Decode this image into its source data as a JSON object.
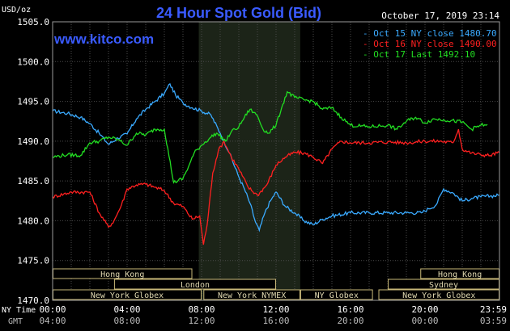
{
  "chart_data": {
    "type": "line",
    "title": "24 Hour Spot Gold (Bid)",
    "source": "www.kitco.com",
    "timestamp": "October 17, 2019 23:14",
    "ylabel": "USD/oz",
    "ylim": [
      1470,
      1505
    ],
    "y_ticks": [
      "1505.0",
      "1500.0",
      "1495.0",
      "1490.0",
      "1485.0",
      "1480.0",
      "1475.0",
      "1470.0"
    ],
    "xlim": [
      0,
      24
    ],
    "x_label_ny": "NY Time",
    "x_label_gmt": "GMT",
    "x_ticks_ny": [
      "00:00",
      "04:00",
      "08:00",
      "12:00",
      "16:00",
      "20:00",
      "23:59"
    ],
    "x_ticks_gmt": [
      "04:00",
      "08:00",
      "12:00",
      "16:00",
      "20:00",
      "00:00",
      "03:59"
    ],
    "highlight": {
      "from": 7.85,
      "to": 13.3,
      "label": "New York NYMEX"
    },
    "legend": {
      "position": "top-right"
    },
    "series": [
      {
        "name": "Oct 15 NY close 1480.70",
        "color": "#3aaaff",
        "points": [
          [
            0,
            1493.8
          ],
          [
            0.8,
            1493.5
          ],
          [
            1.5,
            1493.0
          ],
          [
            2.0,
            1492.2
          ],
          [
            2.5,
            1491.0
          ],
          [
            3.0,
            1489.6
          ],
          [
            3.5,
            1490.4
          ],
          [
            4.0,
            1490.9
          ],
          [
            4.5,
            1492.8
          ],
          [
            5.0,
            1494.0
          ],
          [
            5.5,
            1495.0
          ],
          [
            6.0,
            1496.0
          ],
          [
            6.3,
            1497.2
          ],
          [
            6.6,
            1495.8
          ],
          [
            7.0,
            1494.8
          ],
          [
            7.5,
            1494.2
          ],
          [
            8.0,
            1493.8
          ],
          [
            8.5,
            1493.3
          ],
          [
            9.0,
            1491.0
          ],
          [
            9.5,
            1488.5
          ],
          [
            10.0,
            1485.5
          ],
          [
            10.3,
            1484.0
          ],
          [
            10.6,
            1482.2
          ],
          [
            10.9,
            1479.8
          ],
          [
            11.1,
            1478.8
          ],
          [
            11.4,
            1481.0
          ],
          [
            11.7,
            1482.5
          ],
          [
            12.0,
            1483.6
          ],
          [
            12.5,
            1481.8
          ],
          [
            13.0,
            1481.0
          ],
          [
            13.5,
            1480.0
          ],
          [
            14.0,
            1479.5
          ],
          [
            14.5,
            1480.2
          ],
          [
            15.0,
            1480.6
          ],
          [
            16.0,
            1481.0
          ],
          [
            17.0,
            1481.0
          ],
          [
            18.0,
            1481.0
          ],
          [
            19.0,
            1481.0
          ],
          [
            19.8,
            1481.0
          ],
          [
            20.2,
            1481.5
          ],
          [
            20.6,
            1482.0
          ],
          [
            21.0,
            1484.0
          ],
          [
            21.5,
            1483.5
          ],
          [
            22.0,
            1482.5
          ],
          [
            22.5,
            1482.8
          ],
          [
            23.0,
            1483.0
          ],
          [
            23.5,
            1483.1
          ],
          [
            23.99,
            1483.2
          ]
        ]
      },
      {
        "name": "Oct 16 NY close 1490.00",
        "color": "#ff2020",
        "points": [
          [
            0,
            1483.0
          ],
          [
            1.0,
            1483.6
          ],
          [
            2.0,
            1483.6
          ],
          [
            2.5,
            1481.0
          ],
          [
            3.0,
            1479.2
          ],
          [
            3.3,
            1480.0
          ],
          [
            3.7,
            1482.0
          ],
          [
            4.0,
            1484.0
          ],
          [
            4.5,
            1484.5
          ],
          [
            5.0,
            1484.6
          ],
          [
            5.5,
            1484.2
          ],
          [
            6.0,
            1483.8
          ],
          [
            6.5,
            1482.2
          ],
          [
            7.0,
            1481.8
          ],
          [
            7.5,
            1480.2
          ],
          [
            7.9,
            1480.6
          ],
          [
            8.1,
            1477.0
          ],
          [
            8.3,
            1479.5
          ],
          [
            8.6,
            1486.0
          ],
          [
            8.9,
            1488.8
          ],
          [
            9.2,
            1490.0
          ],
          [
            9.6,
            1488.0
          ],
          [
            10.0,
            1486.5
          ],
          [
            10.5,
            1484.2
          ],
          [
            11.0,
            1483.2
          ],
          [
            11.5,
            1484.5
          ],
          [
            12.0,
            1487.0
          ],
          [
            12.5,
            1488.0
          ],
          [
            13.0,
            1488.6
          ],
          [
            13.5,
            1488.5
          ],
          [
            14.0,
            1488.0
          ],
          [
            14.5,
            1487.2
          ],
          [
            15.0,
            1489.0
          ],
          [
            15.5,
            1490.0
          ],
          [
            16.0,
            1489.8
          ],
          [
            17.0,
            1489.8
          ],
          [
            18.0,
            1489.9
          ],
          [
            19.0,
            1489.8
          ],
          [
            20.0,
            1490.0
          ],
          [
            20.8,
            1490.0
          ],
          [
            21.5,
            1489.8
          ],
          [
            21.8,
            1491.5
          ],
          [
            22.0,
            1489.0
          ],
          [
            22.5,
            1488.5
          ],
          [
            23.0,
            1488.3
          ],
          [
            23.5,
            1488.2
          ],
          [
            23.99,
            1488.6
          ]
        ]
      },
      {
        "name": "Oct 17 Last 1492.10",
        "color": "#22dd22",
        "points": [
          [
            0,
            1488.0
          ],
          [
            0.8,
            1488.3
          ],
          [
            1.5,
            1488.2
          ],
          [
            2.0,
            1489.8
          ],
          [
            2.5,
            1490.0
          ],
          [
            3.0,
            1490.5
          ],
          [
            3.5,
            1490.2
          ],
          [
            4.0,
            1489.5
          ],
          [
            4.5,
            1491.0
          ],
          [
            5.0,
            1490.8
          ],
          [
            5.5,
            1491.5
          ],
          [
            6.0,
            1491.5
          ],
          [
            6.5,
            1484.8
          ],
          [
            7.0,
            1485.3
          ],
          [
            7.3,
            1486.8
          ],
          [
            7.6,
            1488.5
          ],
          [
            8.0,
            1489.5
          ],
          [
            8.5,
            1490.5
          ],
          [
            8.8,
            1491.0
          ],
          [
            9.3,
            1490.0
          ],
          [
            9.6,
            1491.2
          ],
          [
            10.0,
            1491.8
          ],
          [
            10.3,
            1493.0
          ],
          [
            10.6,
            1494.0
          ],
          [
            11.0,
            1493.2
          ],
          [
            11.3,
            1491.5
          ],
          [
            11.6,
            1491.0
          ],
          [
            12.0,
            1492.0
          ],
          [
            12.3,
            1494.2
          ],
          [
            12.6,
            1496.2
          ],
          [
            13.0,
            1495.5
          ],
          [
            13.5,
            1495.2
          ],
          [
            14.0,
            1495.0
          ],
          [
            14.5,
            1494.0
          ],
          [
            15.0,
            1494.2
          ],
          [
            15.5,
            1493.0
          ],
          [
            16.0,
            1492.0
          ],
          [
            17.0,
            1491.8
          ],
          [
            18.0,
            1492.0
          ],
          [
            18.5,
            1491.5
          ],
          [
            19.0,
            1492.5
          ],
          [
            19.5,
            1493.0
          ],
          [
            20.0,
            1492.3
          ],
          [
            20.5,
            1492.8
          ],
          [
            21.0,
            1492.7
          ],
          [
            22.0,
            1492.4
          ],
          [
            22.5,
            1491.5
          ],
          [
            23.0,
            1492.0
          ],
          [
            23.35,
            1492.1
          ]
        ]
      }
    ],
    "sessions": [
      {
        "label": "Hong Kong",
        "from": 0,
        "to": 7.5,
        "row": 0
      },
      {
        "label": "London",
        "from": 3.3,
        "to": 12.0,
        "row": 1
      },
      {
        "label": "New York Globex",
        "from": 0,
        "to": 8.0,
        "row": 2
      },
      {
        "label": "New York NYMEX",
        "from": 8.1,
        "to": 13.3,
        "row": 2
      },
      {
        "label": "NY Globex",
        "from": 13.3,
        "to": 17.2,
        "row": 2
      },
      {
        "label": "Hong Kong",
        "from": 19.75,
        "to": 24,
        "row": 0
      },
      {
        "label": "Sydney",
        "from": 18.0,
        "to": 24,
        "row": 1
      },
      {
        "label": "New York Globex",
        "from": 17.5,
        "to": 24,
        "row": 2
      }
    ]
  }
}
